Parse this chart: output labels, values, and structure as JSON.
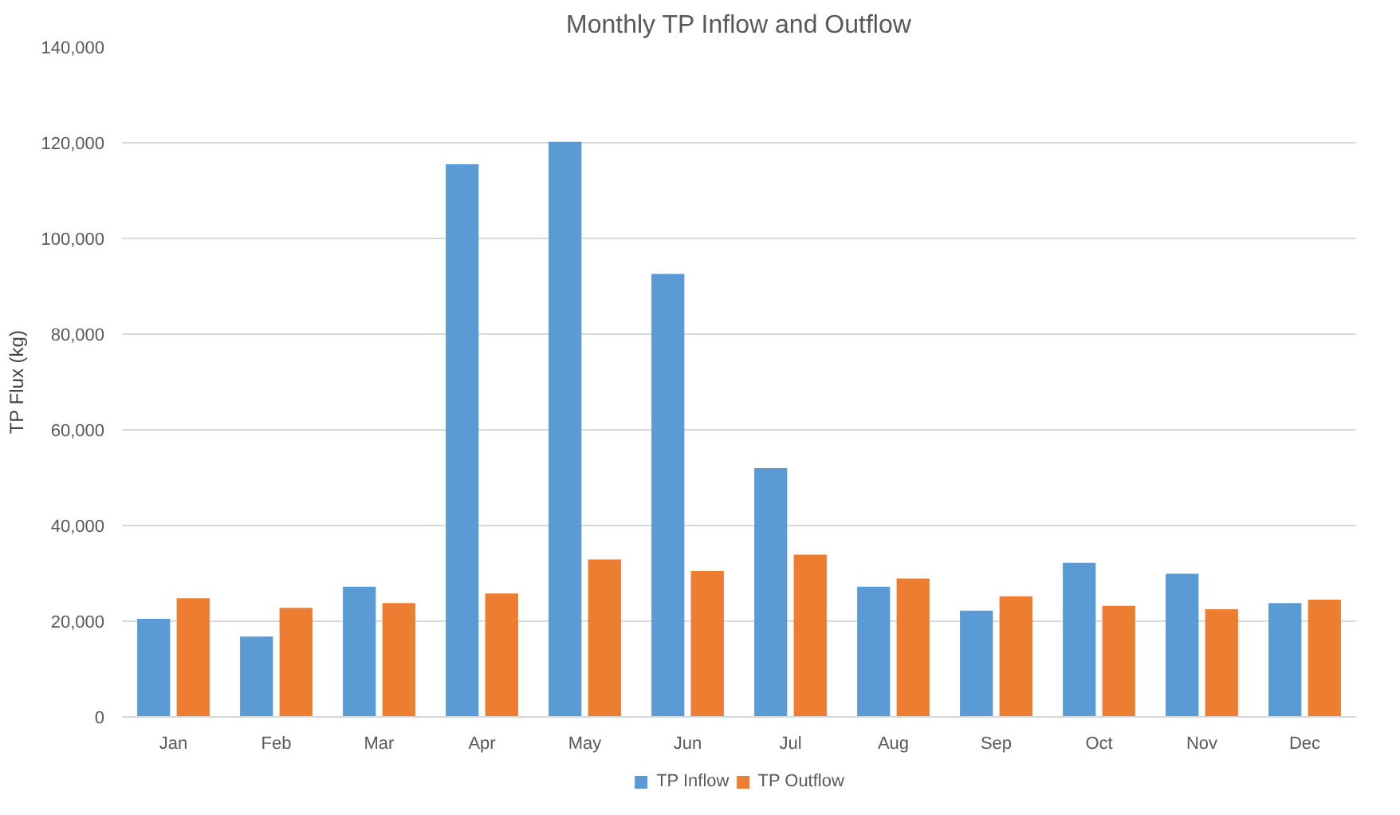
{
  "chart_data": {
    "type": "bar",
    "title": "Monthly TP Inflow and Outflow",
    "ylabel": "TP Flux (kg)",
    "categories": [
      "Jan",
      "Feb",
      "Mar",
      "Apr",
      "May",
      "Jun",
      "Jul",
      "Aug",
      "Sep",
      "Oct",
      "Nov",
      "Dec"
    ],
    "series": [
      {
        "name": "TP Inflow",
        "color": "#5b9bd5",
        "values": [
          20500,
          16800,
          27200,
          115500,
          120200,
          92600,
          52000,
          27200,
          22200,
          32200,
          29900,
          23800
        ]
      },
      {
        "name": "TP Outflow",
        "color": "#ed7d31",
        "values": [
          24800,
          22800,
          23800,
          25800,
          32900,
          30500,
          33900,
          28900,
          25200,
          23200,
          22500,
          24500
        ]
      }
    ],
    "ylim": [
      0,
      140000
    ],
    "yticks": [
      {
        "value": 0,
        "label": "0"
      },
      {
        "value": 20000,
        "label": "20,000"
      },
      {
        "value": 40000,
        "label": "40,000"
      },
      {
        "value": 60000,
        "label": "60,000"
      },
      {
        "value": 80000,
        "label": "80,000"
      },
      {
        "value": 100000,
        "label": "100,000"
      },
      {
        "value": 120000,
        "label": "120,000"
      },
      {
        "value": 140000,
        "label": "140,000"
      }
    ],
    "grid": "y",
    "legend": "bottom"
  }
}
